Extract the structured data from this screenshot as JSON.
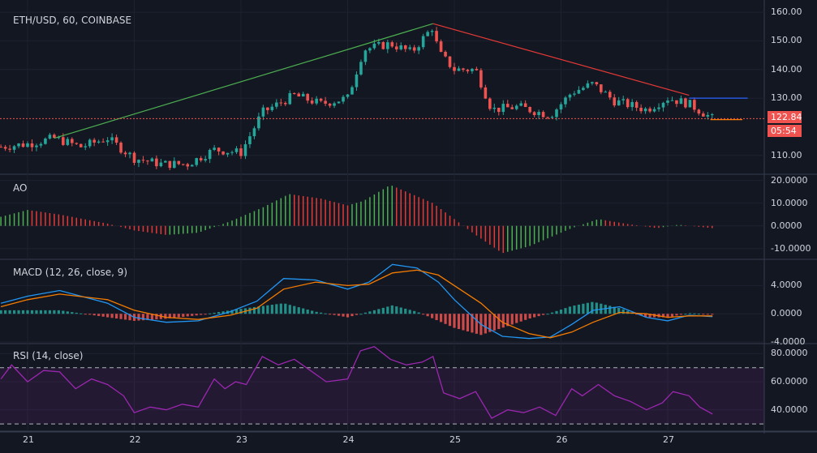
{
  "symbol_label": "ETH/USD, 60, COINBASE",
  "last_price_label": "122.84",
  "countdown_label": "05:54",
  "colors": {
    "up": "#26a69a",
    "down": "#ef5350",
    "macd": "#2196f3",
    "signal": "#f57c00",
    "rsi": "#9c27b0"
  },
  "chart_data": [
    {
      "type": "candlestick",
      "title": "ETH/USD, 60, COINBASE",
      "x_ticks": [
        "21",
        "22",
        "23",
        "24",
        "25",
        "26",
        "27"
      ],
      "y_ticks": [
        "160.00",
        "150.00",
        "140.00",
        "130.00",
        "110.00"
      ],
      "ylim": [
        104,
        162
      ],
      "last_price": 122.84,
      "close_path": [
        {
          "day": 20.75,
          "price": 113
        },
        {
          "day": 21.0,
          "price": 114
        },
        {
          "day": 21.25,
          "price": 116
        },
        {
          "day": 21.5,
          "price": 113
        },
        {
          "day": 21.75,
          "price": 116
        },
        {
          "day": 22.0,
          "price": 109
        },
        {
          "day": 22.25,
          "price": 107
        },
        {
          "day": 22.5,
          "price": 107
        },
        {
          "day": 22.75,
          "price": 112
        },
        {
          "day": 23.0,
          "price": 111
        },
        {
          "day": 23.2,
          "price": 125
        },
        {
          "day": 23.5,
          "price": 131
        },
        {
          "day": 23.75,
          "price": 128
        },
        {
          "day": 24.0,
          "price": 130
        },
        {
          "day": 24.15,
          "price": 147
        },
        {
          "day": 24.4,
          "price": 149
        },
        {
          "day": 24.6,
          "price": 146
        },
        {
          "day": 24.8,
          "price": 155
        },
        {
          "day": 24.85,
          "price": 146
        },
        {
          "day": 25.0,
          "price": 140
        },
        {
          "day": 25.2,
          "price": 140
        },
        {
          "day": 25.35,
          "price": 126
        },
        {
          "day": 25.6,
          "price": 127
        },
        {
          "day": 25.9,
          "price": 124
        },
        {
          "day": 26.1,
          "price": 132
        },
        {
          "day": 26.3,
          "price": 135
        },
        {
          "day": 26.5,
          "price": 129
        },
        {
          "day": 26.8,
          "price": 126
        },
        {
          "day": 27.0,
          "price": 130
        },
        {
          "day": 27.2,
          "price": 128
        },
        {
          "day": 27.42,
          "price": 122.84
        }
      ],
      "trendlines": [
        {
          "from": {
            "day": 21.25,
            "price": 116
          },
          "to": {
            "day": 24.8,
            "price": 156
          },
          "color": "#4caf50"
        },
        {
          "from": {
            "day": 24.8,
            "price": 156
          },
          "to": {
            "day": 27.2,
            "price": 131
          },
          "color": "#e53935"
        }
      ],
      "horizontal_lines": [
        {
          "from_day": 27.2,
          "to_day": 27.75,
          "price": 130,
          "color": "#2962ff"
        },
        {
          "from_day": 27.4,
          "to_day": 27.7,
          "price": 122.5,
          "color": "#f57c00"
        }
      ]
    },
    {
      "type": "bar",
      "title": "AO",
      "y_ticks": [
        "20.0000",
        "10.0000",
        "0.0000",
        "-10.0000"
      ],
      "ylim": [
        -14,
        22
      ],
      "points": [
        {
          "day": 20.75,
          "value": 4
        },
        {
          "day": 21.0,
          "value": 7
        },
        {
          "day": 21.3,
          "value": 5
        },
        {
          "day": 21.75,
          "value": 1
        },
        {
          "day": 22.0,
          "value": -2
        },
        {
          "day": 22.3,
          "value": -4
        },
        {
          "day": 22.6,
          "value": -3
        },
        {
          "day": 22.9,
          "value": 2
        },
        {
          "day": 23.2,
          "value": 8
        },
        {
          "day": 23.45,
          "value": 14
        },
        {
          "day": 23.75,
          "value": 12
        },
        {
          "day": 24.0,
          "value": 9
        },
        {
          "day": 24.15,
          "value": 11
        },
        {
          "day": 24.4,
          "value": 18
        },
        {
          "day": 24.6,
          "value": 14
        },
        {
          "day": 24.8,
          "value": 10
        },
        {
          "day": 25.0,
          "value": 3
        },
        {
          "day": 25.2,
          "value": -4
        },
        {
          "day": 25.45,
          "value": -12
        },
        {
          "day": 25.7,
          "value": -9
        },
        {
          "day": 25.9,
          "value": -5
        },
        {
          "day": 26.1,
          "value": -1
        },
        {
          "day": 26.35,
          "value": 3
        },
        {
          "day": 26.6,
          "value": 1
        },
        {
          "day": 26.9,
          "value": -1
        },
        {
          "day": 27.1,
          "value": 0.5
        },
        {
          "day": 27.42,
          "value": -1
        }
      ]
    },
    {
      "type": "line",
      "title": "MACD (12, 26, close, 9)",
      "y_ticks": [
        "4.0000",
        "0.0000",
        "-4.0000"
      ],
      "ylim": [
        -4,
        7.5
      ],
      "series": [
        {
          "values": [
            {
              "day": 20.75,
              "value": 1.5
            },
            {
              "day": 21.0,
              "value": 2.5
            },
            {
              "day": 21.3,
              "value": 3.3
            },
            {
              "day": 21.75,
              "value": 1.5
            },
            {
              "day": 22.0,
              "value": -0.5
            },
            {
              "day": 22.3,
              "value": -1.2
            },
            {
              "day": 22.6,
              "value": -1.0
            },
            {
              "day": 22.9,
              "value": 0.3
            },
            {
              "day": 23.15,
              "value": 1.8
            },
            {
              "day": 23.4,
              "value": 5.0
            },
            {
              "day": 23.7,
              "value": 4.8
            },
            {
              "day": 24.0,
              "value": 3.5
            },
            {
              "day": 24.2,
              "value": 4.5
            },
            {
              "day": 24.42,
              "value": 7.0
            },
            {
              "day": 24.65,
              "value": 6.5
            },
            {
              "day": 24.85,
              "value": 4.5
            },
            {
              "day": 25.0,
              "value": 2.0
            },
            {
              "day": 25.25,
              "value": -1.5
            },
            {
              "day": 25.45,
              "value": -3.2
            },
            {
              "day": 25.7,
              "value": -3.5
            },
            {
              "day": 25.9,
              "value": -3.3
            },
            {
              "day": 26.1,
              "value": -1.5
            },
            {
              "day": 26.3,
              "value": 0.5
            },
            {
              "day": 26.55,
              "value": 1.0
            },
            {
              "day": 26.8,
              "value": -0.5
            },
            {
              "day": 27.0,
              "value": -1.0
            },
            {
              "day": 27.2,
              "value": -0.2
            },
            {
              "day": 27.42,
              "value": -0.4
            }
          ]
        },
        {
          "values": [
            {
              "day": 20.75,
              "value": 1.0
            },
            {
              "day": 21.0,
              "value": 2.0
            },
            {
              "day": 21.3,
              "value": 2.8
            },
            {
              "day": 21.75,
              "value": 2.0
            },
            {
              "day": 22.0,
              "value": 0.5
            },
            {
              "day": 22.3,
              "value": -0.5
            },
            {
              "day": 22.6,
              "value": -0.8
            },
            {
              "day": 22.9,
              "value": -0.2
            },
            {
              "day": 23.15,
              "value": 0.8
            },
            {
              "day": 23.4,
              "value": 3.5
            },
            {
              "day": 23.7,
              "value": 4.5
            },
            {
              "day": 24.0,
              "value": 4.0
            },
            {
              "day": 24.2,
              "value": 4.2
            },
            {
              "day": 24.42,
              "value": 5.8
            },
            {
              "day": 24.65,
              "value": 6.2
            },
            {
              "day": 24.85,
              "value": 5.5
            },
            {
              "day": 25.0,
              "value": 4.0
            },
            {
              "day": 25.25,
              "value": 1.5
            },
            {
              "day": 25.45,
              "value": -1.2
            },
            {
              "day": 25.7,
              "value": -2.8
            },
            {
              "day": 25.9,
              "value": -3.4
            },
            {
              "day": 26.1,
              "value": -2.6
            },
            {
              "day": 26.3,
              "value": -1.2
            },
            {
              "day": 26.55,
              "value": 0.2
            },
            {
              "day": 26.8,
              "value": 0.0
            },
            {
              "day": 27.0,
              "value": -0.5
            },
            {
              "day": 27.2,
              "value": -0.3
            },
            {
              "day": 27.42,
              "value": -0.3
            }
          ]
        }
      ]
    },
    {
      "type": "line",
      "title": "RSI (14, close)",
      "y_ticks": [
        "80.0000",
        "60.0000",
        "40.0000"
      ],
      "ylim": [
        26,
        86
      ],
      "bands": [
        30,
        70
      ],
      "series": [
        {
          "values": [
            {
              "day": 20.75,
              "value": 62
            },
            {
              "day": 20.85,
              "value": 72
            },
            {
              "day": 21.0,
              "value": 60
            },
            {
              "day": 21.15,
              "value": 68
            },
            {
              "day": 21.3,
              "value": 67
            },
            {
              "day": 21.45,
              "value": 55
            },
            {
              "day": 21.6,
              "value": 62
            },
            {
              "day": 21.75,
              "value": 58
            },
            {
              "day": 21.9,
              "value": 50
            },
            {
              "day": 22.0,
              "value": 38
            },
            {
              "day": 22.15,
              "value": 42
            },
            {
              "day": 22.3,
              "value": 40
            },
            {
              "day": 22.45,
              "value": 44
            },
            {
              "day": 22.6,
              "value": 42
            },
            {
              "day": 22.75,
              "value": 62
            },
            {
              "day": 22.85,
              "value": 55
            },
            {
              "day": 22.95,
              "value": 60
            },
            {
              "day": 23.05,
              "value": 58
            },
            {
              "day": 23.2,
              "value": 78
            },
            {
              "day": 23.35,
              "value": 72
            },
            {
              "day": 23.5,
              "value": 76
            },
            {
              "day": 23.65,
              "value": 68
            },
            {
              "day": 23.8,
              "value": 60
            },
            {
              "day": 24.0,
              "value": 62
            },
            {
              "day": 24.12,
              "value": 82
            },
            {
              "day": 24.25,
              "value": 85
            },
            {
              "day": 24.4,
              "value": 76
            },
            {
              "day": 24.55,
              "value": 72
            },
            {
              "day": 24.7,
              "value": 74
            },
            {
              "day": 24.8,
              "value": 78
            },
            {
              "day": 24.9,
              "value": 52
            },
            {
              "day": 25.05,
              "value": 48
            },
            {
              "day": 25.2,
              "value": 53
            },
            {
              "day": 25.35,
              "value": 34
            },
            {
              "day": 25.5,
              "value": 40
            },
            {
              "day": 25.65,
              "value": 38
            },
            {
              "day": 25.8,
              "value": 42
            },
            {
              "day": 25.95,
              "value": 36
            },
            {
              "day": 26.1,
              "value": 55
            },
            {
              "day": 26.2,
              "value": 50
            },
            {
              "day": 26.35,
              "value": 58
            },
            {
              "day": 26.5,
              "value": 50
            },
            {
              "day": 26.65,
              "value": 46
            },
            {
              "day": 26.8,
              "value": 40
            },
            {
              "day": 26.95,
              "value": 45
            },
            {
              "day": 27.05,
              "value": 53
            },
            {
              "day": 27.2,
              "value": 50
            },
            {
              "day": 27.3,
              "value": 42
            },
            {
              "day": 27.42,
              "value": 37
            }
          ]
        }
      ]
    }
  ]
}
